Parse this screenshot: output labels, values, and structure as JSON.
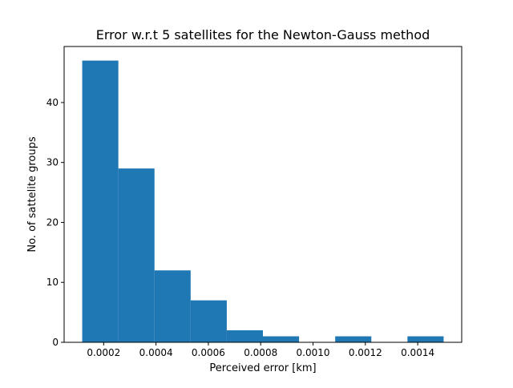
{
  "chart_data": {
    "type": "bar",
    "subtype": "histogram",
    "title": "Error w.r.t 5 satellites for the Newton-Gauss method",
    "xlabel": "Perceived error [km]",
    "ylabel": "No. of sattelite groups",
    "bin_edges": [
      0.000118,
      0.0002561,
      0.0003942,
      0.0005323,
      0.0006704,
      0.0008085,
      0.0009466,
      0.0010847,
      0.0012228,
      0.0013609,
      0.001499
    ],
    "values": [
      47,
      29,
      12,
      7,
      2,
      1,
      0,
      1,
      0,
      1
    ],
    "xlim": [
      4.89e-05,
      0.0015681
    ],
    "ylim": [
      0,
      49.35
    ],
    "xticks": [
      0.0002,
      0.0004,
      0.0006,
      0.0008,
      0.001,
      0.0012,
      0.0014
    ],
    "xtick_labels": [
      "0.0002",
      "0.0004",
      "0.0006",
      "0.0008",
      "0.0010",
      "0.0012",
      "0.0014"
    ],
    "yticks": [
      0,
      10,
      20,
      30,
      40
    ],
    "ytick_labels": [
      "0",
      "10",
      "20",
      "30",
      "40"
    ],
    "grid": false,
    "legend": false,
    "bar_color": "#1f77b4"
  }
}
